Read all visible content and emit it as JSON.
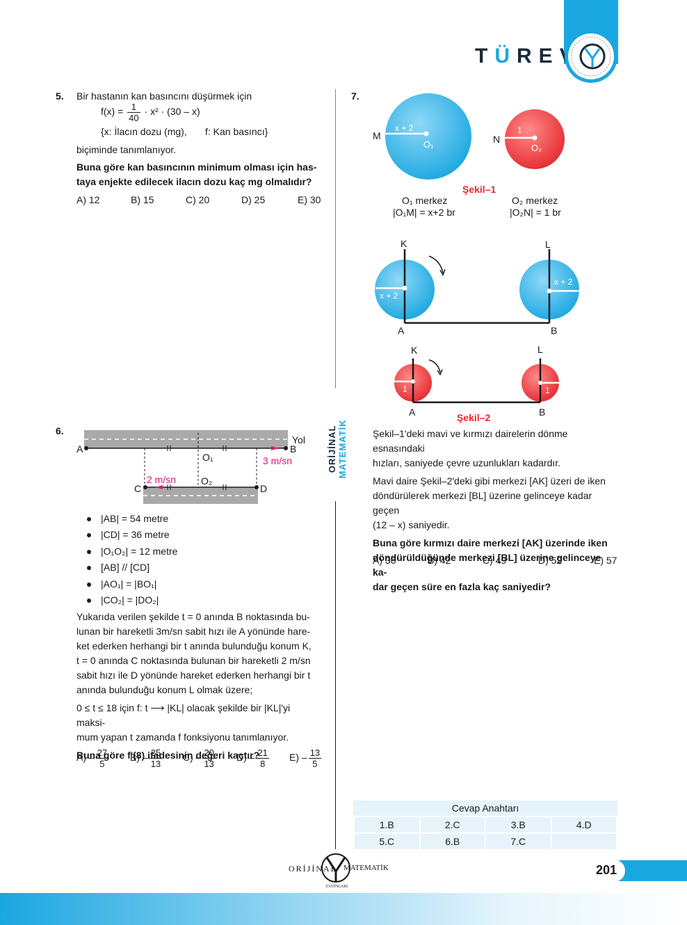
{
  "header": {
    "brand": "TÜREV",
    "brand_letters": [
      "T",
      "Ü",
      "R",
      "E",
      "V"
    ]
  },
  "side_label": {
    "part1": "ORİJİNAL",
    "part2": "MATEMATİK"
  },
  "q5": {
    "num": "5.",
    "intro": "Bir hastanın kan basıncını düşürmek için",
    "formula_lhs": "f(x) =",
    "frac_num": "1",
    "frac_den": "40",
    "formula_rhs": "· x² · (30 – x)",
    "vars": "{x: İlacın dozu (mg),",
    "vars2": "f: Kan basıncı}",
    "defined": "biçiminde tanımlanıyor.",
    "question_l1": "Buna göre kan basıncının minimum olması için has-",
    "question_l2": "taya enjekte edilecek ilacın dozu kaç mg olmalıdır?",
    "options": [
      "A) 12",
      "B) 15",
      "C) 20",
      "D) 25",
      "E) 30"
    ]
  },
  "q6": {
    "num": "6.",
    "fig": {
      "A": "A",
      "B": "B",
      "C": "C",
      "D": "D",
      "O1": "O₁",
      "O2": "O₂",
      "yol": "Yol",
      "speedB": "3 m/sn",
      "speedC": "2 m/sn"
    },
    "bullets": [
      "|AB| = 54 metre",
      "|CD| = 36 metre",
      "|O₁O₂| = 12 metre",
      "[AB] // [CD]",
      "|AO₁| = |BO₁|",
      "|CO₂| = |DO₂|"
    ],
    "para1": [
      "Yukarıda verilen şekilde t = 0 anında B noktasında bu-",
      "lunan bir hareketli 3m/sn sabit hızı ile A yönünde hare-",
      "ket ederken herhangi bir t anında bulunduğu konum K,",
      "t = 0 anında C noktasında bulunan bir hareketli 2 m/sn",
      "sabit hızı ile D yönünde hareket ederken herhangi bir t",
      "anında bulunduğu konum L olmak üzere;"
    ],
    "para2": [
      "0 ≤ t ≤ 18 için f: t ⟶ |KL| olacak şekilde bir |KL|'yi maksi-",
      "mum yapan t zamanda f fonksiyonu tanımlanıyor."
    ],
    "question": "Buna göre f'(8) ifadesinin değeri kaçtır?",
    "options": [
      {
        "label": "A) –",
        "num": "27",
        "den": "5"
      },
      {
        "label": "B) –",
        "num": "25",
        "den": "13"
      },
      {
        "label": "C) –",
        "num": "20",
        "den": "13"
      },
      {
        "label": "D) –",
        "num": "21",
        "den": "8"
      },
      {
        "label": "E) –",
        "num": "13",
        "den": "5"
      }
    ]
  },
  "q7": {
    "num": "7.",
    "fig1": {
      "M": "M",
      "N": "N",
      "blue_radius": "x + 2",
      "red_radius": "1",
      "O1": "O₁",
      "O2": "O₂",
      "caption": "Şekil–1",
      "left_l1": "O₁ merkez",
      "left_l2": "|O₁M| = x+2 br",
      "right_l1": "O₂ merkez",
      "right_l2": "|O₂N| = 1 br"
    },
    "fig2a": {
      "K": "K",
      "L": "L",
      "A": "A",
      "B": "B",
      "r1": "x + 2",
      "r2": "x + 2"
    },
    "fig2b": {
      "K": "K",
      "L": "L",
      "A": "A",
      "B": "B",
      "r1": "1",
      "r2": "1",
      "caption": "Şekil–2"
    },
    "para1": [
      "Şekil–1'deki mavi ve kırmızı dairelerin dönme esnasındaki",
      "hızları, saniyede çevre uzunlukları kadardır."
    ],
    "para2": [
      "Mavi daire Şekil–2'deki gibi merkezi [AK] üzeri de iken",
      "döndürülerek merkezi [BL] üzerine gelinceye kadar geçen",
      "(12 – x) saniyedir."
    ],
    "question": [
      "Buna göre kırmızı daire merkezi [AK] üzerinde iken",
      "döndürüldüğünde merkezi [BL] üzerine gelinceye ka-",
      "dar geçen süre en fazla kaç saniyedir?"
    ],
    "options": [
      "A) 36",
      "B) 42",
      "C) 49",
      "D) 52",
      "E) 57"
    ]
  },
  "answer_key": {
    "title": "Cevap Anahtarı",
    "rows": [
      [
        "1.B",
        "2.C",
        "3.B",
        "4.D"
      ],
      [
        "5.C",
        "6.B",
        "7.C",
        ""
      ]
    ]
  },
  "footer": {
    "left": "ORİJİNAL",
    "right": "MATEMATİK",
    "sub": "YAYINLARI",
    "page": "201"
  },
  "colors": {
    "blue": "#1aa7e0",
    "red": "#e52a2f",
    "accent": "#0d8fcf",
    "pink": "#e0157a"
  }
}
